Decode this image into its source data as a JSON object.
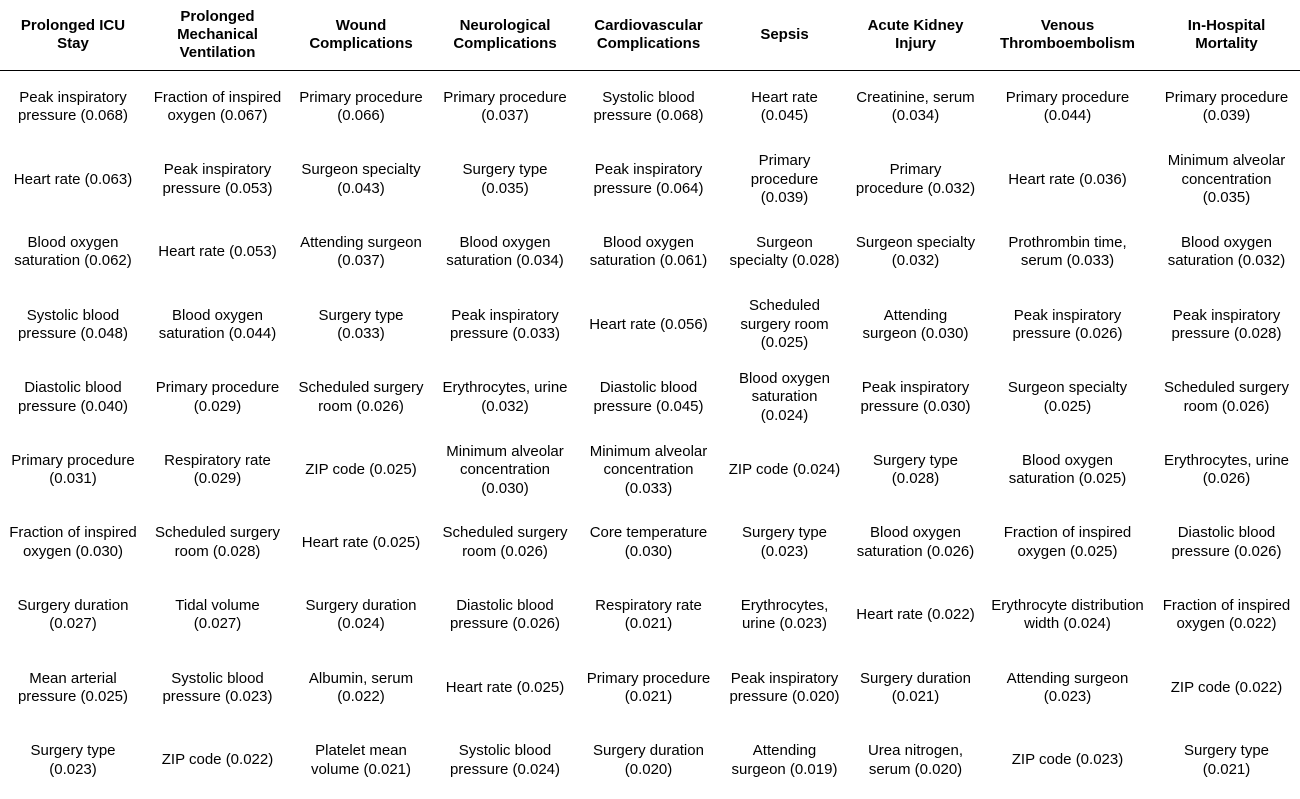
{
  "table": {
    "headers": [
      "Prolonged ICU Stay",
      "Prolonged Mechanical Ventilation",
      "Wound Complications",
      "Neurological Complications",
      "Cardiovascular Complications",
      "Sepsis",
      "Acute Kidney Injury",
      "Venous Thromboembolism",
      "In-Hospital Mortality"
    ],
    "rows": [
      [
        "Peak inspiratory pressure (0.068)",
        "Fraction of inspired oxygen (0.067)",
        "Primary procedure (0.066)",
        "Primary procedure (0.037)",
        "Systolic blood pressure (0.068)",
        "Heart rate (0.045)",
        "Creatinine, serum (0.034)",
        "Primary procedure (0.044)",
        "Primary procedure (0.039)"
      ],
      [
        "Heart rate (0.063)",
        "Peak inspiratory pressure (0.053)",
        "Surgeon specialty (0.043)",
        "Surgery type (0.035)",
        "Peak inspiratory pressure (0.064)",
        "Primary procedure (0.039)",
        "Primary procedure (0.032)",
        "Heart rate (0.036)",
        "Minimum alveolar concentration (0.035)"
      ],
      [
        "Blood oxygen saturation (0.062)",
        "Heart rate (0.053)",
        "Attending surgeon (0.037)",
        "Blood oxygen saturation (0.034)",
        "Blood oxygen saturation (0.061)",
        "Surgeon specialty (0.028)",
        "Surgeon specialty (0.032)",
        "Prothrombin time, serum (0.033)",
        "Blood oxygen saturation (0.032)"
      ],
      [
        "Systolic blood pressure (0.048)",
        "Blood oxygen saturation (0.044)",
        "Surgery type (0.033)",
        "Peak inspiratory pressure (0.033)",
        "Heart rate (0.056)",
        "Scheduled surgery room (0.025)",
        "Attending surgeon (0.030)",
        "Peak inspiratory pressure (0.026)",
        "Peak inspiratory pressure (0.028)"
      ],
      [
        "Diastolic blood pressure (0.040)",
        "Primary procedure (0.029)",
        "Scheduled surgery room (0.026)",
        "Erythrocytes, urine (0.032)",
        "Diastolic blood pressure (0.045)",
        "Blood oxygen saturation (0.024)",
        "Peak inspiratory pressure (0.030)",
        "Surgeon specialty (0.025)",
        "Scheduled surgery room (0.026)"
      ],
      [
        "Primary procedure (0.031)",
        "Respiratory rate (0.029)",
        "ZIP code (0.025)",
        "Minimum alveolar concentration (0.030)",
        "Minimum alveolar concentration (0.033)",
        "ZIP code (0.024)",
        "Surgery type (0.028)",
        "Blood oxygen saturation (0.025)",
        "Erythrocytes, urine (0.026)"
      ],
      [
        "Fraction of inspired oxygen (0.030)",
        "Scheduled surgery room (0.028)",
        "Heart rate (0.025)",
        "Scheduled surgery room (0.026)",
        "Core temperature (0.030)",
        "Surgery type (0.023)",
        "Blood oxygen saturation (0.026)",
        "Fraction of inspired oxygen (0.025)",
        "Diastolic blood pressure (0.026)"
      ],
      [
        "Surgery duration (0.027)",
        "Tidal volume (0.027)",
        "Surgery duration (0.024)",
        "Diastolic blood pressure (0.026)",
        "Respiratory rate (0.021)",
        "Erythrocytes, urine (0.023)",
        "Heart rate (0.022)",
        "Erythrocyte distribution width (0.024)",
        "Fraction of inspired oxygen (0.022)"
      ],
      [
        "Mean arterial pressure (0.025)",
        "Systolic blood pressure (0.023)",
        "Albumin, serum (0.022)",
        "Heart rate (0.025)",
        "Primary procedure (0.021)",
        "Peak inspiratory pressure (0.020)",
        "Surgery duration (0.021)",
        "Attending surgeon (0.023)",
        "ZIP code (0.022)"
      ],
      [
        "Surgery type (0.023)",
        "ZIP code (0.022)",
        "Platelet mean volume (0.021)",
        "Systolic blood pressure (0.024)",
        "Surgery duration (0.020)",
        "Attending surgeon (0.019)",
        "Urea nitrogen, serum (0.020)",
        "ZIP code (0.023)",
        "Surgery type (0.021)"
      ]
    ]
  }
}
